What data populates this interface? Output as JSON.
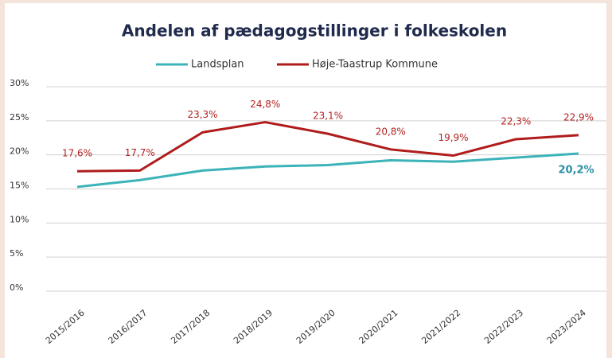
{
  "chart_data": {
    "type": "line",
    "title": "Andelen af pædagogstillinger i folkeskolen",
    "categories": [
      "2015/2016",
      "2016/2017",
      "2017/2018",
      "2018/2019",
      "2019/2020",
      "2020/2021",
      "2021/2022",
      "2022/2023",
      "2023/2024"
    ],
    "series": [
      {
        "name": "Landsplan",
        "color": "#3bb3b8",
        "values": [
          15.3,
          16.3,
          17.7,
          18.3,
          18.5,
          19.2,
          19.0,
          19.6,
          20.2
        ],
        "value_labels": [
          null,
          null,
          null,
          null,
          null,
          null,
          null,
          null,
          "20,2%"
        ]
      },
      {
        "name": "Høje-Taastrup Kommune",
        "color": "#b01c1c",
        "values": [
          17.6,
          17.7,
          23.3,
          24.8,
          23.1,
          20.8,
          19.9,
          22.3,
          22.9
        ],
        "value_labels": [
          "17,6%",
          "17,7%",
          "23,3%",
          "24,8%",
          "23,1%",
          "20,8%",
          "19,9%",
          "22,3%",
          "22,9%"
        ]
      }
    ],
    "ylim": [
      0,
      30
    ],
    "yticks": [
      {
        "value": 0,
        "label": "0%"
      },
      {
        "value": 5,
        "label": "5%"
      },
      {
        "value": 10,
        "label": "10%"
      },
      {
        "value": 15,
        "label": "15%"
      },
      {
        "value": 20,
        "label": "20%"
      },
      {
        "value": 25,
        "label": "25%"
      },
      {
        "value": 30,
        "label": "30%"
      }
    ],
    "grid": true
  }
}
